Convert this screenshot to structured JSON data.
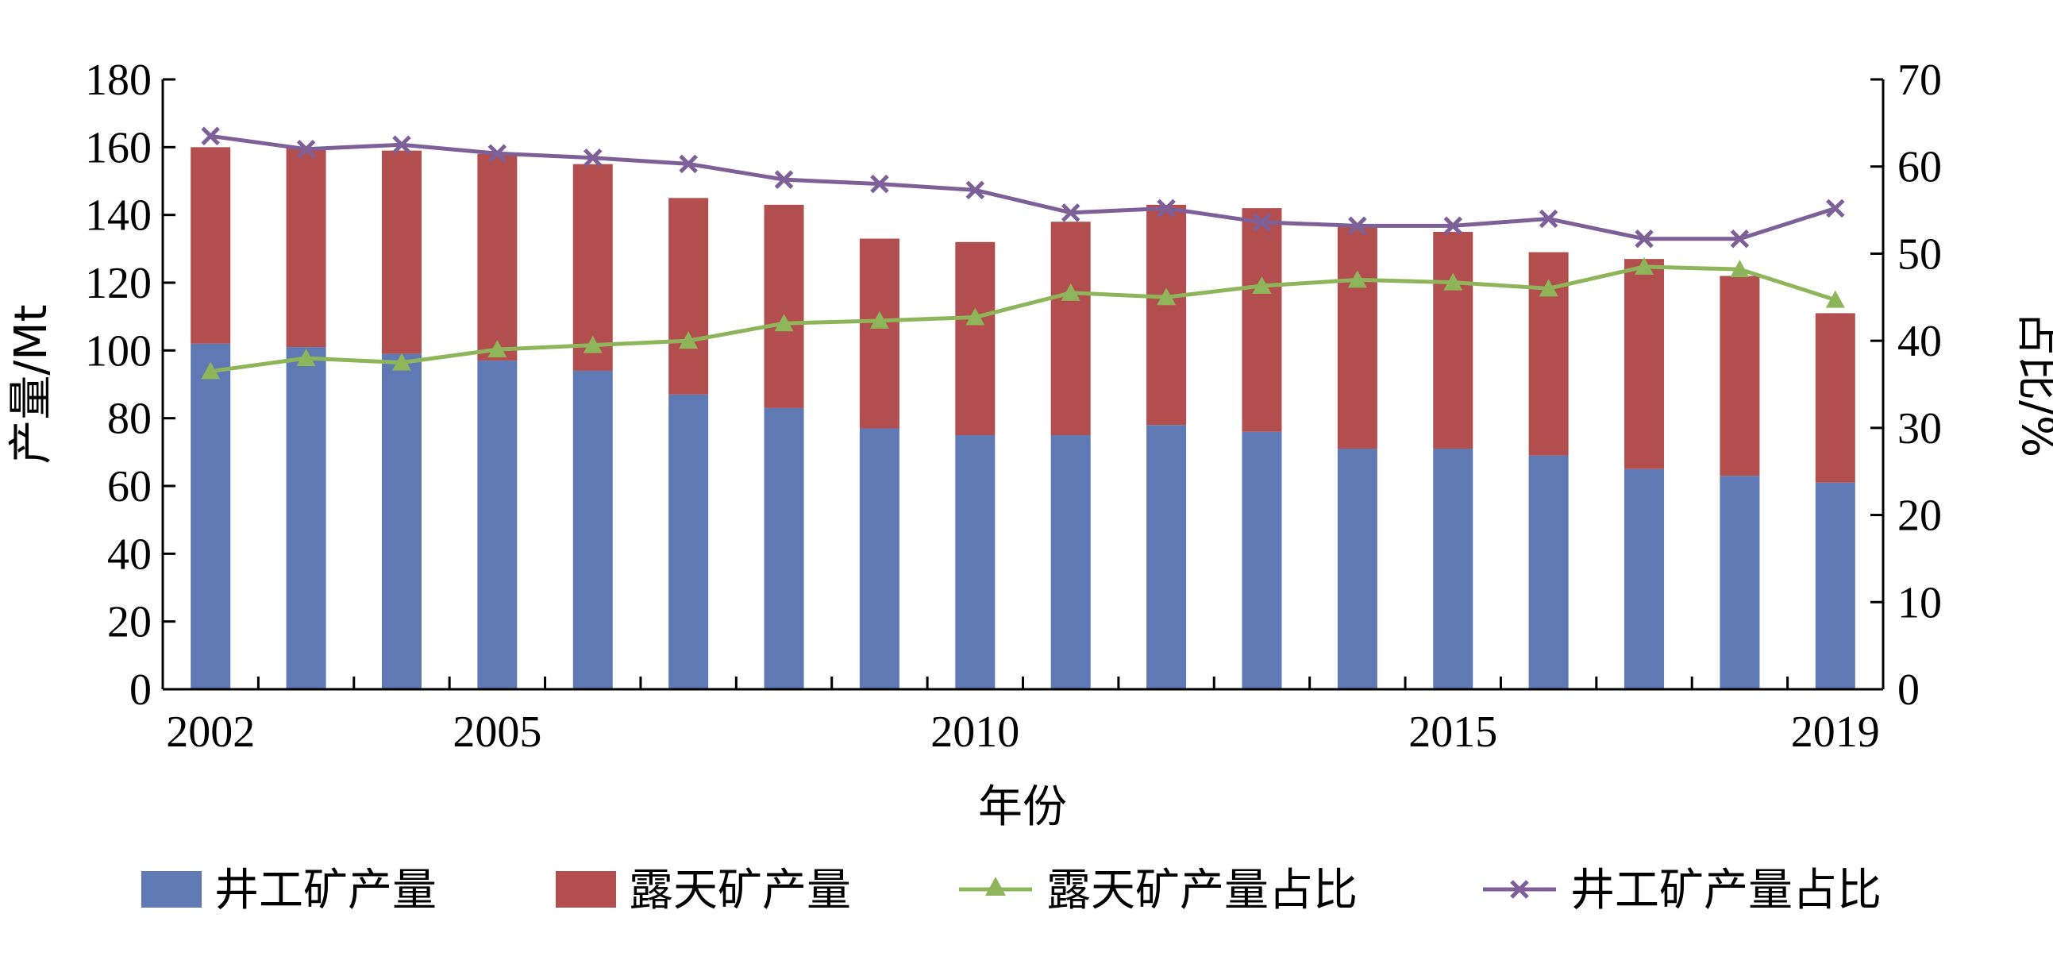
{
  "chart_data": {
    "type": "bar",
    "stacked": true,
    "xlabel": "年份",
    "ylabel": "产量/Mt",
    "y2label": "占比/%",
    "ylim": [
      0,
      180
    ],
    "y2lim": [
      0,
      70
    ],
    "yticks": [
      0,
      20,
      40,
      60,
      80,
      100,
      120,
      140,
      160,
      180
    ],
    "y2ticks": [
      0,
      10,
      20,
      30,
      40,
      50,
      60,
      70
    ],
    "xtick_labels": [
      "2002",
      "2005",
      "2010",
      "2015",
      "2019"
    ],
    "categories": [
      "2002",
      "2003",
      "2004",
      "2005",
      "2006",
      "2007",
      "2008",
      "2009",
      "2010",
      "2011",
      "2012",
      "2013",
      "2014",
      "2015",
      "2016",
      "2017",
      "2018",
      "2019"
    ],
    "legend_position": "bottom",
    "grid": false,
    "series": [
      {
        "name": "井工矿产量",
        "kind": "bar",
        "axis": "left",
        "color": "#5E79B3",
        "values": [
          102,
          101,
          99,
          97,
          94,
          87,
          83,
          77,
          75,
          75,
          78,
          76,
          71,
          71,
          69,
          65,
          63,
          61
        ]
      },
      {
        "name": "露天矿产量",
        "kind": "bar",
        "axis": "left",
        "color": "#B24E4E",
        "values": [
          58,
          59,
          60,
          61,
          61,
          58,
          60,
          56,
          57,
          63,
          65,
          66,
          66,
          64,
          60,
          62,
          59,
          50
        ]
      },
      {
        "name": "露天矿产量占比",
        "kind": "line",
        "axis": "right",
        "color": "#8FB55A",
        "marker": "triangle",
        "values": [
          36.5,
          38,
          37.5,
          39,
          39.5,
          40,
          42,
          42.3,
          42.7,
          45.5,
          45,
          46.3,
          47,
          46.7,
          46,
          48.5,
          48.2,
          44.7
        ]
      },
      {
        "name": "井工矿产量占比",
        "kind": "line",
        "axis": "right",
        "color": "#7E6098",
        "marker": "x",
        "values": [
          63.5,
          62,
          62.5,
          61.5,
          61,
          60.3,
          58.5,
          58,
          57.3,
          54.7,
          55.2,
          53.6,
          53.2,
          53.2,
          54,
          51.7,
          51.7,
          55.2
        ]
      }
    ]
  }
}
